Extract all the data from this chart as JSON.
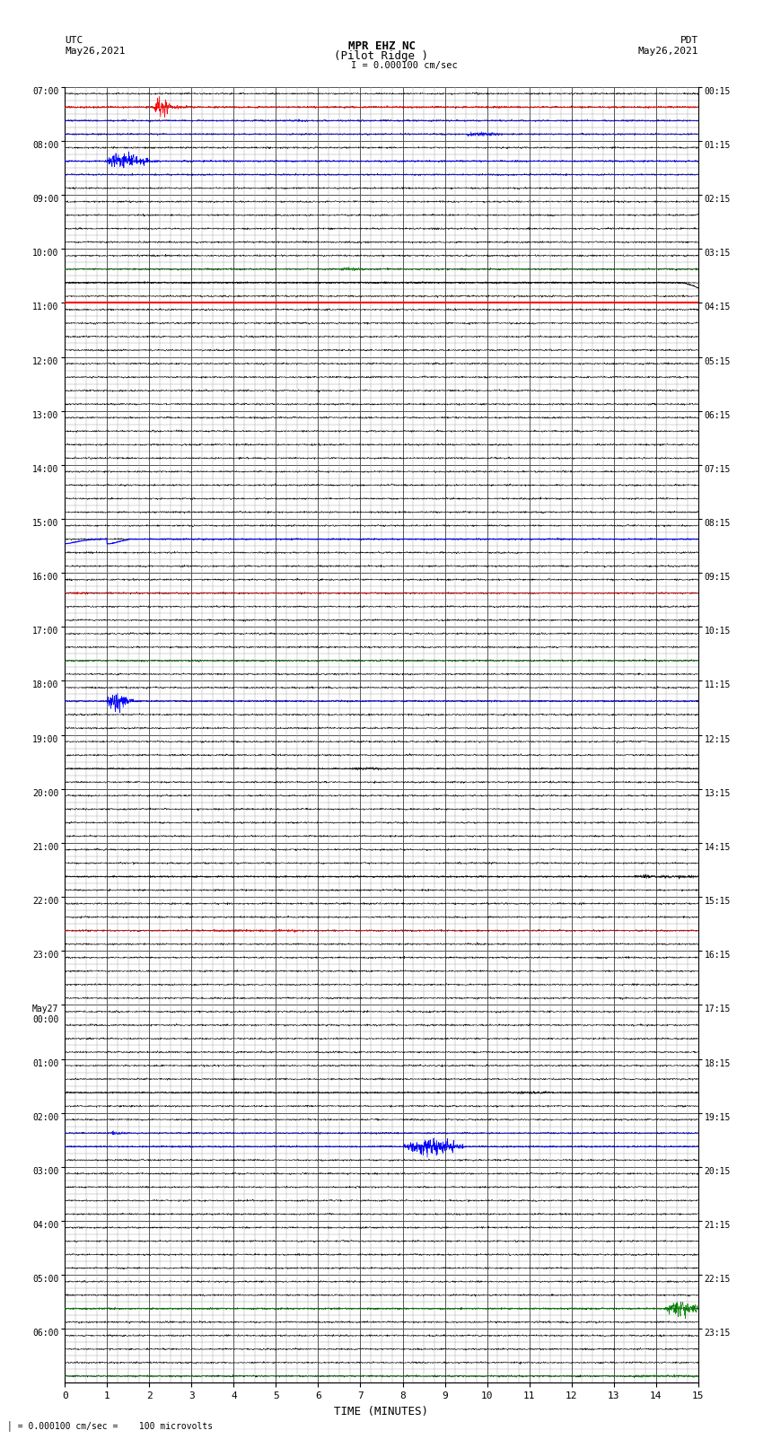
{
  "title_line1": "MPR EHZ NC",
  "title_line2": "(Pilot Ridge )",
  "title_line3": "I = 0.000100 cm/sec",
  "left_label_top": "UTC",
  "left_label_date": "May26,2021",
  "right_label_top": "PDT",
  "right_label_date": "May26,2021",
  "bottom_label": "TIME (MINUTES)",
  "scale_label": "= 0.000100 cm/sec =    100 microvolts",
  "fig_width": 8.5,
  "fig_height": 16.13,
  "dpi": 100,
  "n_rows": 24,
  "subrows_per_row": 4,
  "left_time_labels": [
    "07:00",
    "08:00",
    "09:00",
    "10:00",
    "11:00",
    "12:00",
    "13:00",
    "14:00",
    "15:00",
    "16:00",
    "17:00",
    "18:00",
    "19:00",
    "20:00",
    "21:00",
    "22:00",
    "23:00",
    "May27\n00:00",
    "01:00",
    "02:00",
    "03:00",
    "04:00",
    "05:00",
    "06:00"
  ],
  "right_time_labels": [
    "00:15",
    "01:15",
    "02:15",
    "03:15",
    "04:15",
    "05:15",
    "06:15",
    "07:15",
    "08:15",
    "09:15",
    "10:15",
    "11:15",
    "12:15",
    "13:15",
    "14:15",
    "15:15",
    "16:15",
    "17:15",
    "18:15",
    "19:15",
    "20:15",
    "21:15",
    "22:15",
    "23:15"
  ],
  "grid_color": "#555555",
  "minor_grid_color": "#aaaaaa",
  "background_color": "#ffffff",
  "x_min": 0,
  "x_max": 15,
  "total_rows": 24
}
